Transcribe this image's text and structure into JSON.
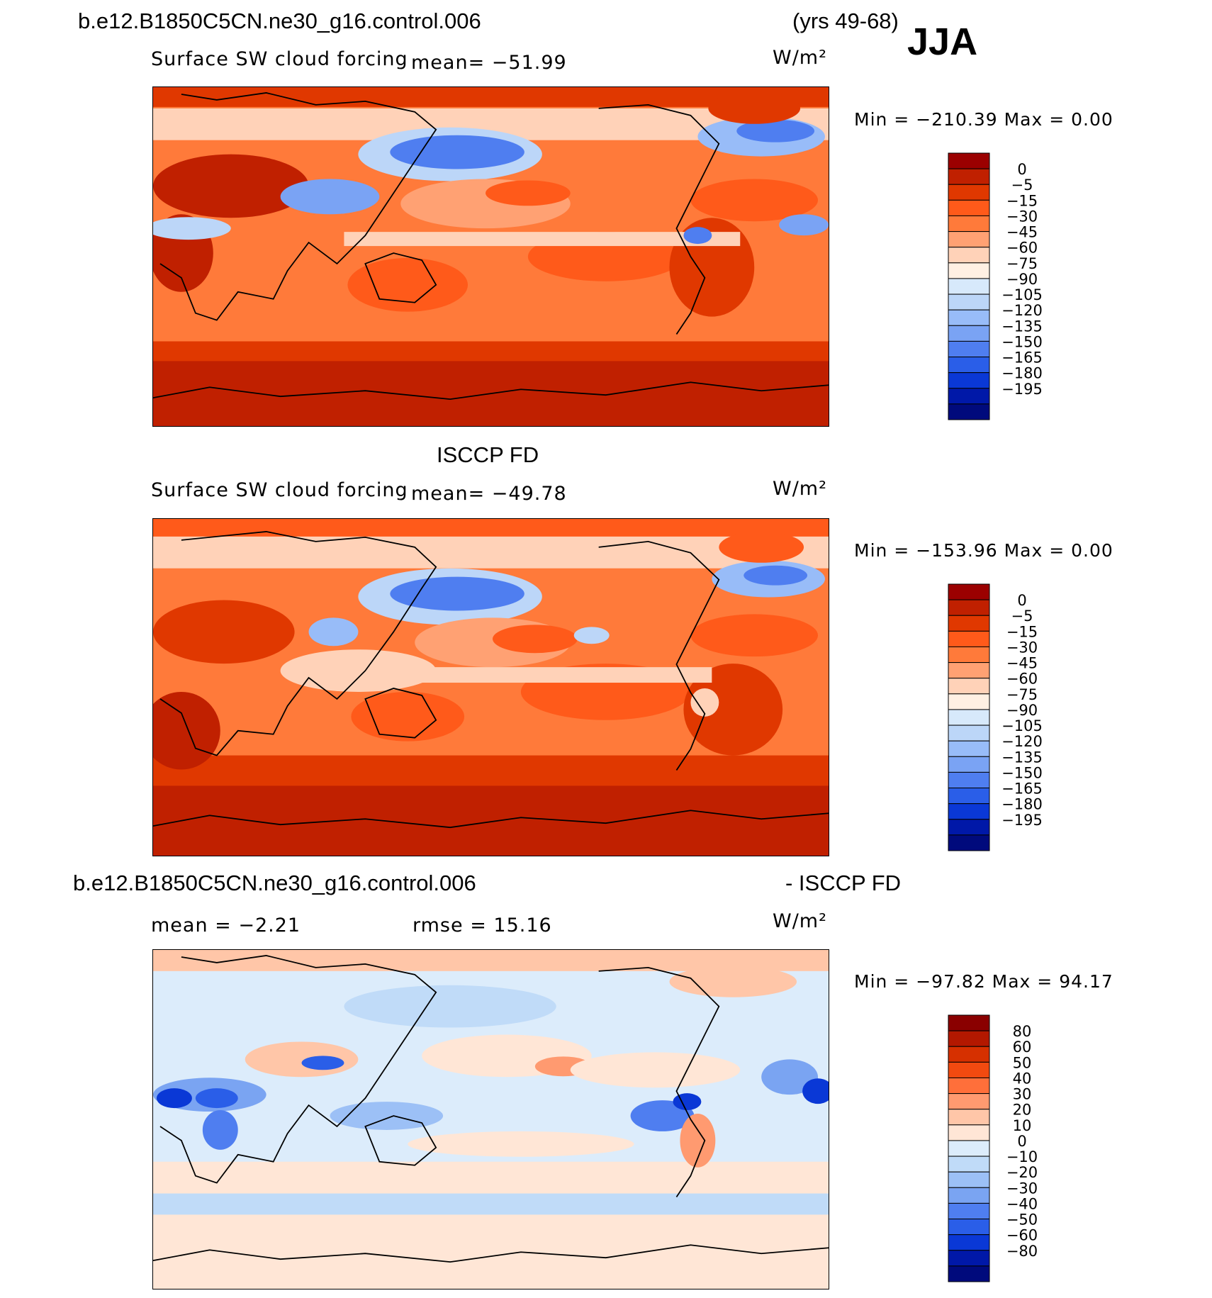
{
  "header": {
    "case_name": "b.e12.B1850C5CN.ne30_g16.control.006",
    "years": "(yrs 49-68)",
    "season": "JJA"
  },
  "colors": {
    "negative_scale": [
      "#9b0000",
      "#c02000",
      "#e03800",
      "#ff5a1a",
      "#ff7a3a",
      "#ffa173",
      "#ffd2b8",
      "#fff0e3",
      "#d7e9fb",
      "#bcd6f8",
      "#98bcf8",
      "#7aa3f4",
      "#4f7ef0",
      "#2a5ee8",
      "#0a38d6",
      "#0018a8",
      "#000a7c"
    ],
    "diff_scale": [
      "#8a0000",
      "#b31800",
      "#d63000",
      "#f24a10",
      "#ff6f3a",
      "#ff9a70",
      "#ffc6a8",
      "#ffe6d6",
      "#dcecfb",
      "#c0dbf8",
      "#9cc0f6",
      "#7aa4f2",
      "#4f7ef0",
      "#2a5ee8",
      "#0a38d6",
      "#0018a8",
      "#000a7c"
    ]
  },
  "chart_data": [
    {
      "type": "heatmap",
      "panel": "model",
      "title": "Surface SW cloud forcing",
      "mean_label": "mean= −51.99",
      "units": "W/m²",
      "min_max": "Min = −210.39 Max =    0.00",
      "levels": [
        "0",
        "−5",
        "−15",
        "−30",
        "−45",
        "−60",
        "−75",
        "−90",
        "−105",
        "−120",
        "−135",
        "−150",
        "−165",
        "−180",
        "−195"
      ]
    },
    {
      "type": "heatmap",
      "panel": "observations",
      "heading": "ISCCP FD",
      "title": "Surface SW cloud forcing",
      "mean_label": "mean= −49.78",
      "units": "W/m²",
      "min_max": "Min = −153.96 Max =    0.00",
      "levels": [
        "0",
        "−5",
        "−15",
        "−30",
        "−45",
        "−60",
        "−75",
        "−90",
        "−105",
        "−120",
        "−135",
        "−150",
        "−165",
        "−180",
        "−195"
      ]
    },
    {
      "type": "heatmap",
      "panel": "difference",
      "heading_left": "b.e12.B1850C5CN.ne30_g16.control.006",
      "heading_right": "- ISCCP FD",
      "mean_label": "mean =   −2.21",
      "rmse_label": "rmse =   15.16",
      "units": "W/m²",
      "min_max": "Min = −97.82 Max =   94.17",
      "levels": [
        "80",
        "60",
        "50",
        "40",
        "30",
        "20",
        "10",
        "0",
        "−10",
        "−20",
        "−30",
        "−40",
        "−50",
        "−60",
        "−80"
      ]
    }
  ]
}
